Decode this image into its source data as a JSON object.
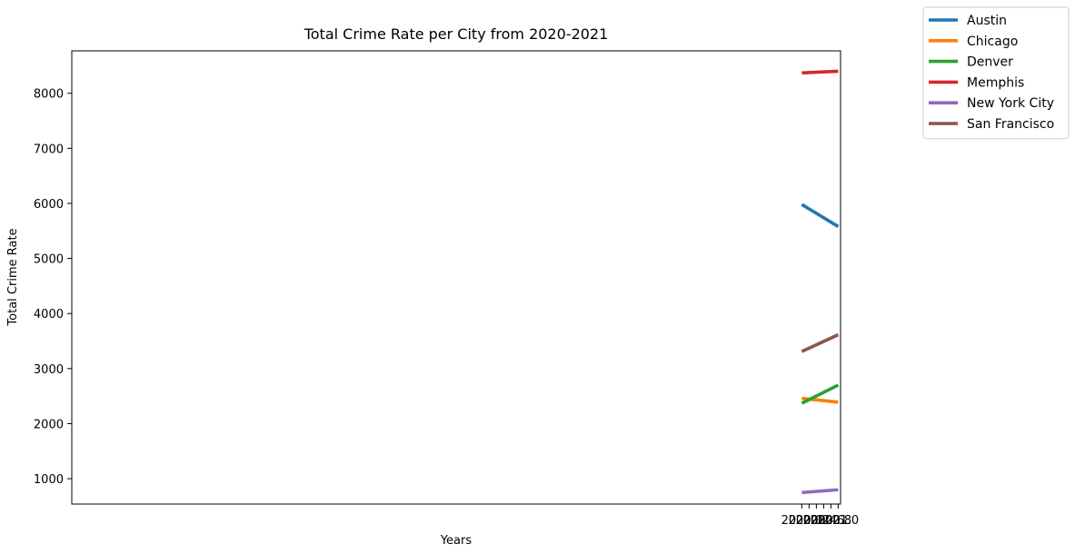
{
  "chart_data": {
    "type": "line",
    "title": "Total Crime Rate per City from 2020-2021",
    "xlabel": "Years",
    "ylabel": "Total Crime Rate",
    "xlim": [
      1999.935,
      2021.065
    ],
    "ylim": [
      540,
      8770
    ],
    "xticks": [
      2020.0,
      2020.2,
      2020.4,
      2020.6,
      2020.8,
      2021.0
    ],
    "xtick_labels": [
      "2020.0",
      "2020.2",
      "2020.4",
      "2020.6",
      "2020.8",
      "2021.0"
    ],
    "yticks": [
      1000,
      2000,
      3000,
      4000,
      5000,
      6000,
      7000,
      8000
    ],
    "ytick_labels": [
      "1000",
      "2000",
      "3000",
      "4000",
      "5000",
      "6000",
      "7000",
      "8000"
    ],
    "x": [
      2020,
      2021
    ],
    "grid": false,
    "legend_position": "outside-top-right",
    "series": [
      {
        "name": "Austin",
        "color": "#1f77b4",
        "values": [
          5980,
          5580
        ]
      },
      {
        "name": "Chicago",
        "color": "#ff7f0e",
        "values": [
          2460,
          2390
        ]
      },
      {
        "name": "Denver",
        "color": "#2ca02c",
        "values": [
          2370,
          2700
        ]
      },
      {
        "name": "Memphis",
        "color": "#d62728",
        "values": [
          8370,
          8400
        ]
      },
      {
        "name": "New York City",
        "color": "#9467bd",
        "values": [
          750,
          800
        ]
      },
      {
        "name": "San Francisco",
        "color": "#8c564b",
        "values": [
          3310,
          3615
        ]
      }
    ]
  }
}
